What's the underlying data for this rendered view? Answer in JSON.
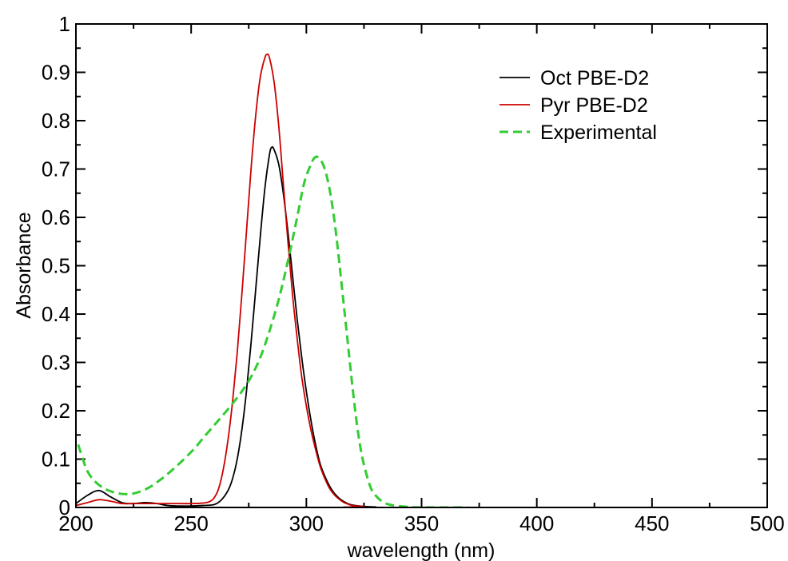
{
  "chart_data": {
    "type": "line",
    "xlabel": "wavelength (nm)",
    "ylabel": "Absorbance",
    "xlim": [
      200,
      500
    ],
    "ylim": [
      0,
      1
    ],
    "x_ticks": [
      200,
      250,
      300,
      350,
      400,
      450,
      500
    ],
    "x_tick_labels": [
      "200",
      "250",
      "300",
      "350",
      "400",
      "450",
      "500"
    ],
    "y_ticks": [
      0,
      0.1,
      0.2,
      0.3,
      0.4,
      0.5,
      0.6,
      0.7,
      0.8,
      0.9,
      1
    ],
    "y_tick_labels": [
      "0",
      "0.1",
      "0.2",
      "0.3",
      "0.4",
      "0.5",
      "0.6",
      "0.7",
      "0.8",
      "0.9",
      "1"
    ],
    "grid": false,
    "legend_position": "top-right",
    "series": [
      {
        "name": "Oct PBE-D2",
        "color": "#000000",
        "dash": "solid",
        "points": [
          [
            200,
            0.008
          ],
          [
            205,
            0.025
          ],
          [
            210,
            0.035
          ],
          [
            215,
            0.022
          ],
          [
            220,
            0.01
          ],
          [
            225,
            0.008
          ],
          [
            230,
            0.01
          ],
          [
            235,
            0.008
          ],
          [
            240,
            0.004
          ],
          [
            245,
            0.003
          ],
          [
            250,
            0.003
          ],
          [
            255,
            0.004
          ],
          [
            260,
            0.006
          ],
          [
            263,
            0.015
          ],
          [
            266,
            0.035
          ],
          [
            268,
            0.06
          ],
          [
            270,
            0.1
          ],
          [
            272,
            0.16
          ],
          [
            274,
            0.24
          ],
          [
            276,
            0.34
          ],
          [
            278,
            0.45
          ],
          [
            280,
            0.56
          ],
          [
            282,
            0.66
          ],
          [
            284,
            0.73
          ],
          [
            285,
            0.745
          ],
          [
            286,
            0.74
          ],
          [
            288,
            0.71
          ],
          [
            290,
            0.65
          ],
          [
            292,
            0.57
          ],
          [
            294,
            0.48
          ],
          [
            296,
            0.39
          ],
          [
            298,
            0.31
          ],
          [
            300,
            0.24
          ],
          [
            302,
            0.18
          ],
          [
            304,
            0.13
          ],
          [
            306,
            0.09
          ],
          [
            308,
            0.065
          ],
          [
            310,
            0.045
          ],
          [
            312,
            0.03
          ],
          [
            314,
            0.02
          ],
          [
            316,
            0.013
          ],
          [
            318,
            0.008
          ],
          [
            320,
            0.005
          ],
          [
            325,
            0.002
          ],
          [
            330,
            0.001
          ],
          [
            340,
            0.0
          ],
          [
            500,
            0.0
          ]
        ]
      },
      {
        "name": "Pyr PBE-D2",
        "color": "#cc0000",
        "dash": "solid",
        "points": [
          [
            200,
            0.004
          ],
          [
            205,
            0.01
          ],
          [
            210,
            0.016
          ],
          [
            215,
            0.013
          ],
          [
            220,
            0.008
          ],
          [
            225,
            0.008
          ],
          [
            230,
            0.008
          ],
          [
            235,
            0.008
          ],
          [
            240,
            0.008
          ],
          [
            245,
            0.008
          ],
          [
            250,
            0.008
          ],
          [
            255,
            0.009
          ],
          [
            258,
            0.012
          ],
          [
            260,
            0.02
          ],
          [
            262,
            0.04
          ],
          [
            264,
            0.08
          ],
          [
            266,
            0.14
          ],
          [
            268,
            0.22
          ],
          [
            270,
            0.32
          ],
          [
            272,
            0.44
          ],
          [
            274,
            0.57
          ],
          [
            276,
            0.7
          ],
          [
            278,
            0.81
          ],
          [
            280,
            0.89
          ],
          [
            282,
            0.93
          ],
          [
            283,
            0.937
          ],
          [
            284,
            0.93
          ],
          [
            286,
            0.88
          ],
          [
            288,
            0.79
          ],
          [
            290,
            0.67
          ],
          [
            292,
            0.55
          ],
          [
            294,
            0.44
          ],
          [
            296,
            0.35
          ],
          [
            298,
            0.27
          ],
          [
            300,
            0.21
          ],
          [
            302,
            0.16
          ],
          [
            304,
            0.12
          ],
          [
            306,
            0.085
          ],
          [
            308,
            0.06
          ],
          [
            310,
            0.04
          ],
          [
            312,
            0.027
          ],
          [
            314,
            0.018
          ],
          [
            316,
            0.011
          ],
          [
            318,
            0.007
          ],
          [
            320,
            0.004
          ],
          [
            325,
            0.002
          ],
          [
            330,
            0.0
          ],
          [
            500,
            0.0
          ]
        ]
      },
      {
        "name": "Experimental",
        "color": "#33cc33",
        "dash": "dashed",
        "points": [
          [
            201,
            0.13
          ],
          [
            203,
            0.1
          ],
          [
            205,
            0.075
          ],
          [
            208,
            0.055
          ],
          [
            212,
            0.04
          ],
          [
            216,
            0.032
          ],
          [
            220,
            0.028
          ],
          [
            224,
            0.028
          ],
          [
            228,
            0.033
          ],
          [
            232,
            0.042
          ],
          [
            236,
            0.055
          ],
          [
            240,
            0.07
          ],
          [
            244,
            0.087
          ],
          [
            248,
            0.105
          ],
          [
            252,
            0.125
          ],
          [
            256,
            0.148
          ],
          [
            260,
            0.17
          ],
          [
            264,
            0.192
          ],
          [
            268,
            0.215
          ],
          [
            272,
            0.24
          ],
          [
            276,
            0.27
          ],
          [
            280,
            0.31
          ],
          [
            284,
            0.365
          ],
          [
            288,
            0.43
          ],
          [
            292,
            0.51
          ],
          [
            296,
            0.6
          ],
          [
            299,
            0.67
          ],
          [
            302,
            0.71
          ],
          [
            304,
            0.725
          ],
          [
            306,
            0.72
          ],
          [
            308,
            0.7
          ],
          [
            310,
            0.66
          ],
          [
            312,
            0.6
          ],
          [
            314,
            0.52
          ],
          [
            316,
            0.43
          ],
          [
            318,
            0.34
          ],
          [
            320,
            0.25
          ],
          [
            322,
            0.17
          ],
          [
            324,
            0.11
          ],
          [
            326,
            0.07
          ],
          [
            328,
            0.04
          ],
          [
            330,
            0.025
          ],
          [
            333,
            0.012
          ],
          [
            336,
            0.006
          ],
          [
            340,
            0.003
          ],
          [
            345,
            0.001
          ],
          [
            350,
            0.0
          ],
          [
            370,
            0.0
          ]
        ]
      }
    ]
  }
}
